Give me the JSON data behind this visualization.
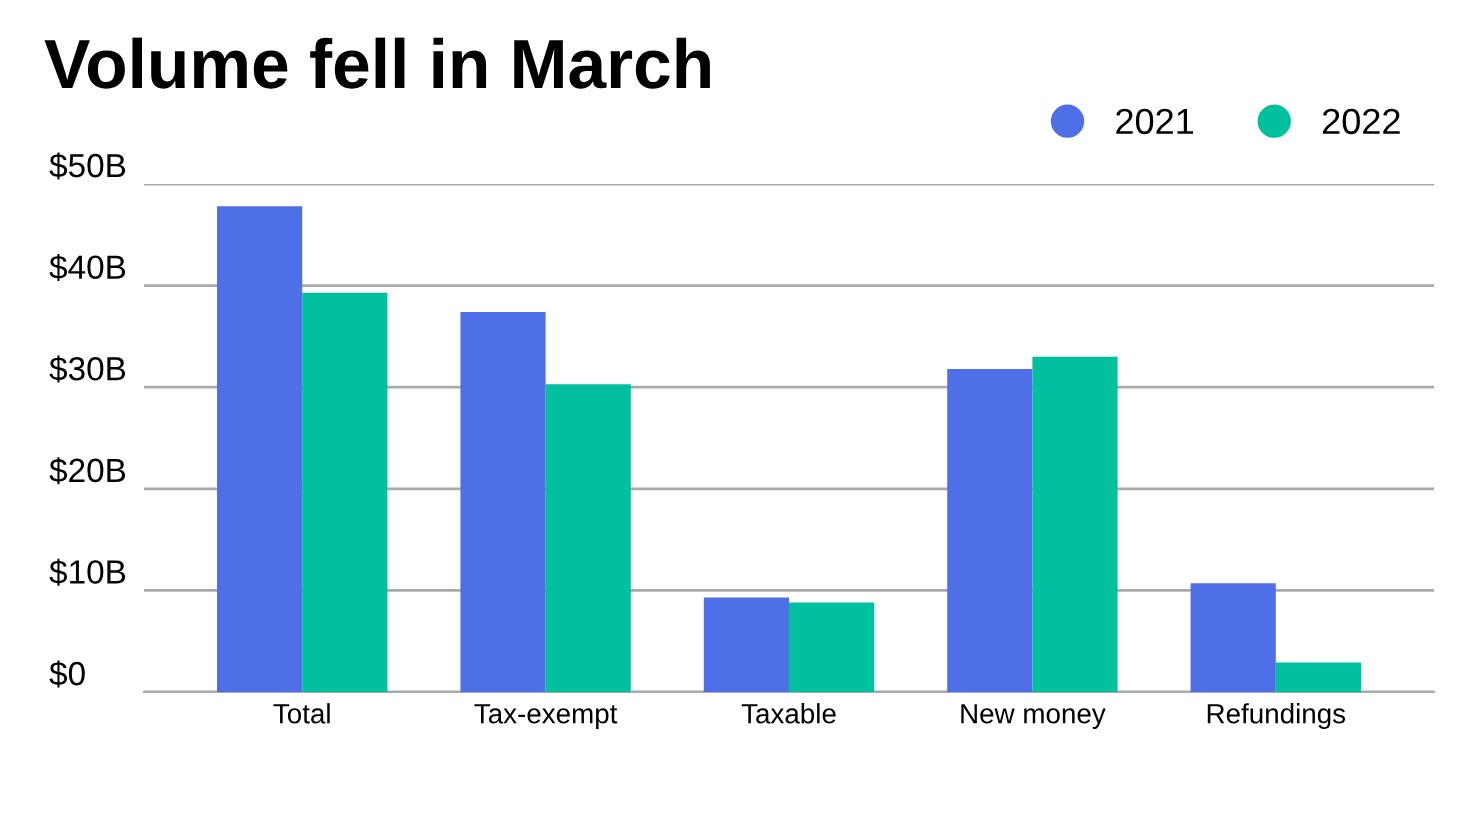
{
  "chart_data": {
    "type": "bar",
    "title": "Volume fell in March",
    "categories": [
      "Total",
      "Tax-exempt",
      "Taxable",
      "New money",
      "Refundings"
    ],
    "series": [
      {
        "name": "2021",
        "color": "#4f6fe8",
        "values": [
          47.8,
          37.4,
          9.3,
          31.8,
          10.7
        ]
      },
      {
        "name": "2022",
        "color": "#00c09e",
        "values": [
          39.3,
          30.3,
          8.8,
          33.0,
          2.9
        ]
      }
    ],
    "ylim": [
      0,
      50
    ],
    "yticks": [
      {
        "value": 0,
        "label": "$0"
      },
      {
        "value": 10,
        "label": "$10B"
      },
      {
        "value": 20,
        "label": "$20B"
      },
      {
        "value": 30,
        "label": "$30B"
      },
      {
        "value": 40,
        "label": "$40B"
      },
      {
        "value": 50,
        "label": "$50B"
      }
    ],
    "grid": "y",
    "legend": "top right"
  }
}
